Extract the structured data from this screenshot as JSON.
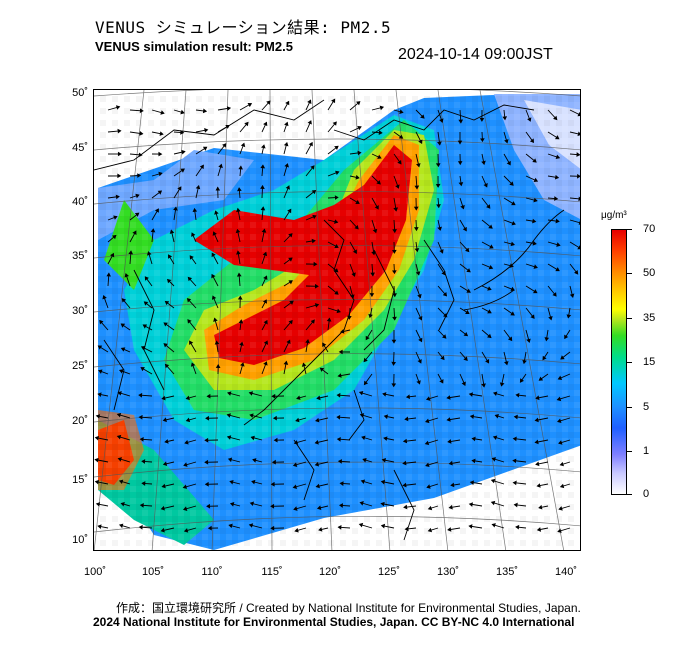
{
  "header": {
    "title_jp": "VENUS シミュレーション結果: PM2.5",
    "title_en": "VENUS simulation result: PM2.5",
    "timestamp": "2024-10-14 09:00JST"
  },
  "map": {
    "lat_labels": [
      "50˚",
      "45˚",
      "40˚",
      "35˚",
      "30˚",
      "25˚",
      "20˚",
      "15˚",
      "10˚"
    ],
    "lon_labels": [
      "100˚",
      "105˚",
      "110˚",
      "115˚",
      "120˚",
      "125˚",
      "130˚",
      "135˚",
      "140˚"
    ],
    "high_concentration_color": "#e60000",
    "ocean_base_color": "#1e90ff"
  },
  "colorbar": {
    "unit": "μg/m³",
    "ticks": [
      "70",
      "50",
      "35",
      "15",
      "5",
      "1",
      "0"
    ]
  },
  "footer": {
    "credit_jp": "作成：国立環境研究所 / Created by National Institute for Environmental Studies, Japan.",
    "credit_en": "2024 National Institute for Environmental Studies, Japan. CC BY-NC 4.0 International"
  }
}
